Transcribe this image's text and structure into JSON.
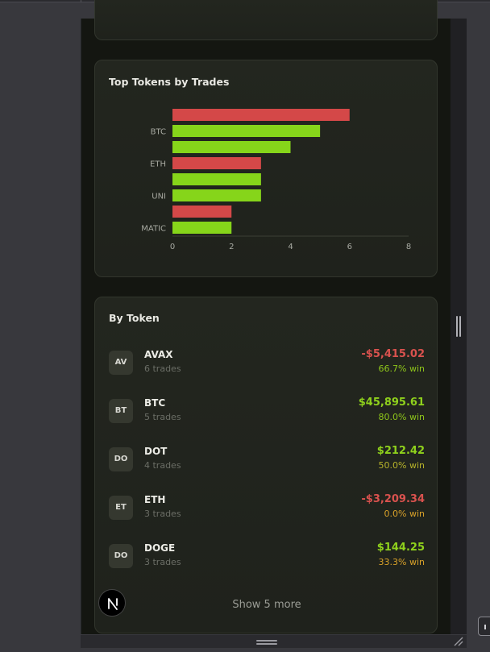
{
  "chart_card": {
    "title": "Top Tokens by Trades"
  },
  "chart_data": {
    "type": "bar",
    "orientation": "horizontal",
    "title": "Top Tokens by Trades",
    "xlim": [
      0,
      8
    ],
    "xticks": [
      0,
      2,
      4,
      6,
      8
    ],
    "tick_labels": [
      "BTC",
      "ETH",
      "UNI",
      "MATIC"
    ],
    "bars": [
      {
        "value": 6,
        "color": "#d44848"
      },
      {
        "value": 5,
        "color": "#86d51a"
      },
      {
        "value": 4,
        "color": "#86d51a"
      },
      {
        "value": 3,
        "color": "#d44848"
      },
      {
        "value": 3,
        "color": "#86d51a"
      },
      {
        "value": 3,
        "color": "#86d51a"
      },
      {
        "value": 2,
        "color": "#d44848"
      },
      {
        "value": 2,
        "color": "#86d51a"
      }
    ],
    "labeled_bars": [
      1,
      3,
      5,
      7
    ],
    "grid": false,
    "legend": "none"
  },
  "token_card": {
    "title": "By Token",
    "show_more_label": "Show 5 more",
    "rows": [
      {
        "badge": "AV",
        "symbol": "AVAX",
        "trades": "6 trades",
        "pnl": "-$5,415.02",
        "pnl_sign": "neg",
        "win": "66.7% win",
        "win_class": "win-hi"
      },
      {
        "badge": "BT",
        "symbol": "BTC",
        "trades": "5 trades",
        "pnl": "$45,895.61",
        "pnl_sign": "pos",
        "win": "80.0% win",
        "win_class": "win-hi"
      },
      {
        "badge": "DO",
        "symbol": "DOT",
        "trades": "4 trades",
        "pnl": "$212.42",
        "pnl_sign": "pos",
        "win": "50.0% win",
        "win_class": "win-mid"
      },
      {
        "badge": "ET",
        "symbol": "ETH",
        "trades": "3 trades",
        "pnl": "-$3,209.34",
        "pnl_sign": "neg",
        "win": "0.0% win",
        "win_class": "win-zero"
      },
      {
        "badge": "DO",
        "symbol": "DOGE",
        "trades": "3 trades",
        "pnl": "$144.25",
        "pnl_sign": "pos",
        "win": "33.3% win",
        "win_class": "win-zero"
      }
    ]
  },
  "colors": {
    "positive": "#8fd11c",
    "negative": "#d9524e",
    "background": "#141611",
    "card": "#22251f"
  },
  "icons": {
    "logo": "nextjs-logo-icon",
    "resize": "resize-corner-icon",
    "drag": "drag-handle-icon"
  }
}
